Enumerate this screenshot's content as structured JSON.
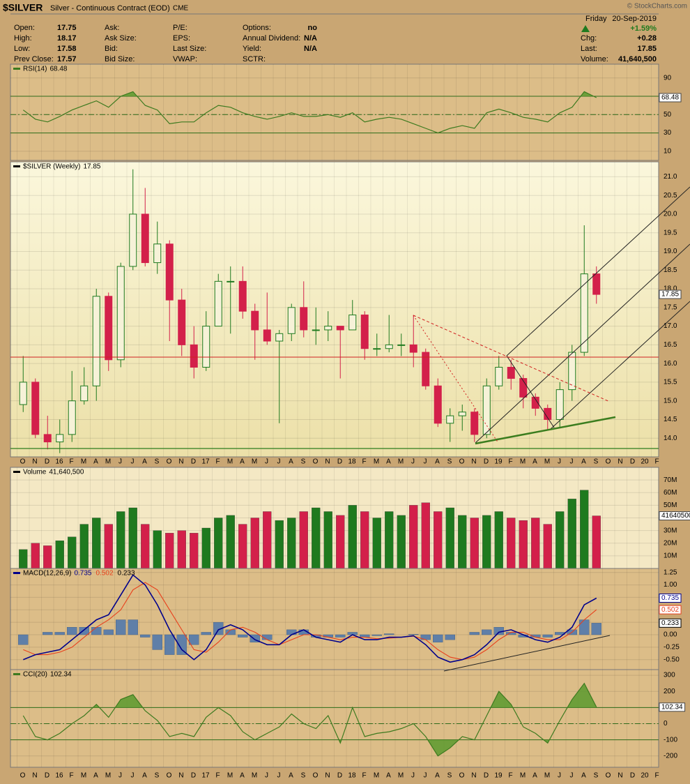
{
  "header": {
    "symbol": "$SILVER",
    "description": "Silver - Continuous Contract (EOD)",
    "exchange": "CME",
    "copyright": "© StockCharts.com",
    "day": "Friday",
    "date": "20-Sep-2019",
    "columns": [
      [
        {
          "label": "Open:",
          "value": "17.75"
        },
        {
          "label": "High:",
          "value": "18.17"
        },
        {
          "label": "Low:",
          "value": "17.58"
        },
        {
          "label": "Prev Close:",
          "value": "17.57"
        }
      ],
      [
        {
          "label": "Ask:"
        },
        {
          "label": "Ask Size:"
        },
        {
          "label": "Bid:"
        },
        {
          "label": "Bid Size:"
        }
      ],
      [
        {
          "label": "P/E:"
        },
        {
          "label": "EPS:"
        },
        {
          "label": "Last Size:"
        },
        {
          "label": "VWAP:"
        }
      ],
      [
        {
          "label": "Options:",
          "value": "no"
        },
        {
          "label": "Annual Dividend:",
          "value": "N/A"
        },
        {
          "label": "Yield:",
          "value": "N/A"
        },
        {
          "label": "SCTR:"
        }
      ]
    ],
    "change_pct": "+1.59%",
    "right_rows": [
      {
        "label": "Chg:",
        "value": "+0.28"
      },
      {
        "label": "Last:",
        "value": "17.85"
      },
      {
        "label": "Volume:",
        "value": "41,640,500"
      }
    ]
  },
  "x_labels": [
    "O",
    "N",
    "D",
    "16",
    "F",
    "M",
    "A",
    "M",
    "J",
    "J",
    "A",
    "S",
    "O",
    "N",
    "D",
    "17",
    "F",
    "M",
    "A",
    "M",
    "J",
    "J",
    "A",
    "S",
    "O",
    "N",
    "D",
    "18",
    "F",
    "M",
    "A",
    "M",
    "J",
    "J",
    "A",
    "S",
    "O",
    "N",
    "D",
    "19",
    "F",
    "M",
    "A",
    "M",
    "J",
    "J",
    "A",
    "S",
    "O",
    "N",
    "D",
    "20",
    "F"
  ],
  "chart_data": [
    {
      "type": "line",
      "title": "RSI(14)",
      "ylim": [
        0,
        105
      ],
      "yticks": [
        90,
        70,
        50,
        30,
        10
      ],
      "levels": [
        70,
        50,
        30
      ],
      "fill_beyond_levels": true,
      "series": [
        {
          "name": "RSI(14)",
          "color": "#3d7a1f",
          "values": [
            55,
            45,
            42,
            48,
            55,
            60,
            65,
            58,
            70,
            75,
            60,
            55,
            40,
            42,
            42,
            52,
            60,
            58,
            52,
            48,
            45,
            48,
            52,
            48,
            48,
            50,
            47,
            52,
            42,
            45,
            47,
            45,
            40,
            35,
            30,
            35,
            38,
            35,
            52,
            56,
            52,
            47,
            45,
            42,
            52,
            58,
            75,
            68.48
          ]
        }
      ]
    },
    {
      "type": "candlestick",
      "title": "$SILVER (Weekly)",
      "ylim": [
        13.5,
        21.4
      ],
      "yticks": [
        {
          "value": 21,
          "label": "21.0"
        },
        20.5,
        {
          "value": 20,
          "label": "20.0"
        },
        19.5,
        {
          "value": 19,
          "label": "19.0"
        },
        18.5,
        {
          "value": 18,
          "label": "18.0"
        },
        17.5,
        {
          "value": 17,
          "label": "17.0"
        },
        16.5,
        {
          "value": 16,
          "label": "16.0"
        },
        15.5,
        {
          "value": 15,
          "label": "15.0"
        },
        14.5,
        {
          "value": 14,
          "label": "14.0"
        }
      ],
      "up_color": "#1f7a1f",
      "down_color": "#d3204a",
      "open": [
        14.9,
        15.5,
        14.1,
        13.9,
        14.1,
        15.0,
        15.4,
        17.8,
        16.1,
        18.6,
        20.0,
        18.7,
        19.2,
        17.7,
        16.5,
        15.9,
        17.0,
        18.2,
        18.2,
        17.4,
        16.9,
        16.6,
        16.8,
        17.5,
        16.9,
        16.9,
        17.0,
        16.9,
        17.3,
        16.4,
        16.4,
        16.5,
        16.5,
        16.3,
        15.4,
        14.4,
        14.6,
        14.7,
        14.1,
        15.4,
        15.9,
        15.6,
        15.1,
        14.8,
        14.5,
        15.3,
        16.3,
        18.4
      ],
      "high": [
        16.2,
        15.6,
        14.6,
        14.5,
        15.8,
        15.9,
        18.0,
        17.9,
        18.7,
        21.2,
        20.7,
        19.8,
        19.3,
        18.0,
        17.0,
        17.4,
        18.4,
        18.6,
        18.6,
        17.6,
        17.9,
        16.9,
        17.6,
        18.2,
        17.5,
        17.4,
        17.0,
        17.7,
        17.4,
        16.8,
        17.3,
        16.8,
        17.3,
        16.4,
        15.6,
        14.8,
        14.9,
        14.8,
        15.6,
        16.2,
        16.1,
        15.7,
        15.2,
        14.9,
        15.5,
        16.5,
        19.7,
        18.6
      ],
      "low": [
        14.7,
        14.0,
        13.7,
        13.6,
        13.9,
        14.9,
        15.0,
        15.8,
        15.9,
        18.5,
        18.6,
        18.4,
        16.6,
        16.2,
        15.6,
        15.8,
        17.0,
        16.8,
        17.2,
        16.1,
        16.5,
        14.4,
        16.6,
        16.7,
        16.5,
        16.6,
        15.6,
        16.9,
        16.1,
        16.2,
        16.3,
        16.2,
        15.9,
        15.3,
        14.3,
        13.9,
        14.2,
        13.9,
        14.0,
        15.3,
        15.3,
        14.8,
        14.6,
        14.2,
        14.3,
        15.0,
        16.2,
        17.6
      ],
      "close": [
        15.5,
        14.1,
        13.9,
        14.1,
        15.0,
        15.4,
        17.8,
        16.1,
        18.6,
        20.0,
        18.7,
        19.2,
        17.7,
        16.5,
        15.9,
        17.0,
        18.2,
        18.2,
        17.4,
        16.9,
        16.6,
        16.8,
        17.5,
        16.9,
        16.9,
        17.0,
        16.9,
        17.3,
        16.4,
        16.4,
        16.5,
        16.5,
        16.3,
        15.4,
        14.4,
        14.6,
        14.7,
        14.1,
        15.4,
        15.9,
        15.6,
        15.1,
        14.8,
        14.5,
        15.3,
        16.3,
        18.4,
        17.85
      ]
    },
    {
      "type": "bar",
      "title": "Volume",
      "ylim": [
        0,
        80
      ],
      "last_label": "41640500",
      "yticks": [
        {
          "value": 70,
          "label": "70M"
        },
        {
          "value": 60,
          "label": "60M"
        },
        {
          "value": 50,
          "label": "50M"
        },
        {
          "value": 40,
          "label": "40M"
        },
        {
          "value": 30,
          "label": "30M"
        },
        {
          "value": 20,
          "label": "20M"
        },
        {
          "value": 10,
          "label": "10M"
        }
      ],
      "values": [
        15,
        20,
        18,
        22,
        25,
        35,
        40,
        35,
        45,
        48,
        35,
        30,
        28,
        30,
        28,
        32,
        40,
        42,
        35,
        40,
        45,
        38,
        40,
        45,
        48,
        45,
        42,
        50,
        45,
        40,
        45,
        42,
        50,
        52,
        45,
        48,
        42,
        40,
        42,
        45,
        40,
        38,
        40,
        35,
        45,
        55,
        62,
        41.6405
      ]
    },
    {
      "type": "macd",
      "title": "MACD(12,26,9)",
      "ylim": [
        -0.7,
        1.33
      ],
      "yticks": [
        1.25,
        {
          "value": 1,
          "label": "1.00"
        },
        0.75,
        {
          "value": 0.5,
          "label": "0.50"
        },
        0.25,
        {
          "value": 0,
          "label": "0.00"
        },
        -0.25,
        {
          "value": -0.5,
          "label": "-0.50"
        }
      ],
      "series": [
        {
          "name": "MACD",
          "color": "#00008b",
          "values": [
            -0.5,
            -0.4,
            -0.35,
            -0.3,
            -0.1,
            0.1,
            0.3,
            0.4,
            0.8,
            1.2,
            1.0,
            0.6,
            0.1,
            -0.3,
            -0.5,
            -0.3,
            0.1,
            0.2,
            0.1,
            -0.1,
            -0.2,
            -0.2,
            0.0,
            0.1,
            -0.05,
            -0.1,
            -0.15,
            0.0,
            -0.1,
            -0.1,
            -0.05,
            -0.05,
            -0.02,
            -0.2,
            -0.45,
            -0.55,
            -0.5,
            -0.4,
            -0.2,
            0.05,
            0.1,
            0.0,
            -0.1,
            -0.15,
            -0.05,
            0.15,
            0.6,
            0.735
          ]
        },
        {
          "name": "Signal",
          "color": "#e8401c",
          "values": [
            -0.3,
            -0.4,
            -0.4,
            -0.35,
            -0.25,
            -0.05,
            0.15,
            0.3,
            0.5,
            0.9,
            1.05,
            0.9,
            0.5,
            0.1,
            -0.3,
            -0.35,
            -0.15,
            0.1,
            0.15,
            0.05,
            -0.1,
            -0.2,
            -0.1,
            0.0,
            0.0,
            -0.05,
            -0.1,
            -0.05,
            -0.05,
            -0.08,
            -0.07,
            -0.05,
            -0.03,
            -0.1,
            -0.3,
            -0.45,
            -0.5,
            -0.45,
            -0.3,
            -0.1,
            0.05,
            0.05,
            -0.05,
            -0.1,
            -0.1,
            0.05,
            0.3,
            0.502
          ]
        },
        {
          "name": "Histogram",
          "color": "#5f7fa8",
          "values": [
            -0.2,
            0,
            0.05,
            0.05,
            0.15,
            0.15,
            0.15,
            0.1,
            0.3,
            0.3,
            -0.05,
            -0.3,
            -0.4,
            -0.4,
            -0.2,
            0.05,
            0.25,
            0.1,
            -0.05,
            -0.15,
            -0.1,
            0,
            0.1,
            0.1,
            -0.05,
            -0.05,
            -0.05,
            0.05,
            -0.05,
            -0.02,
            0.02,
            0,
            0.01,
            -0.1,
            -0.15,
            -0.1,
            0,
            0.05,
            0.1,
            0.15,
            0.05,
            -0.05,
            -0.05,
            -0.05,
            0.05,
            0.1,
            0.3,
            0.233
          ]
        }
      ]
    },
    {
      "type": "line",
      "title": "CCI(20)",
      "ylim": [
        -270,
        335
      ],
      "yticks": [
        300,
        200,
        100,
        0,
        -100,
        -200
      ],
      "levels": [
        100,
        0,
        -100
      ],
      "fill_beyond_levels": true,
      "series": [
        {
          "name": "CCI(20)",
          "color": "#3d7a1f",
          "values": [
            50,
            -80,
            -100,
            -60,
            0,
            50,
            120,
            40,
            150,
            180,
            80,
            20,
            -80,
            -60,
            -80,
            40,
            100,
            50,
            -50,
            -100,
            -60,
            -20,
            60,
            0,
            -30,
            50,
            -120,
            100,
            -80,
            -60,
            -50,
            -30,
            0,
            -80,
            -200,
            -150,
            -80,
            -100,
            50,
            200,
            120,
            -20,
            -60,
            -120,
            20,
            150,
            250,
            102.34
          ]
        }
      ]
    }
  ]
}
